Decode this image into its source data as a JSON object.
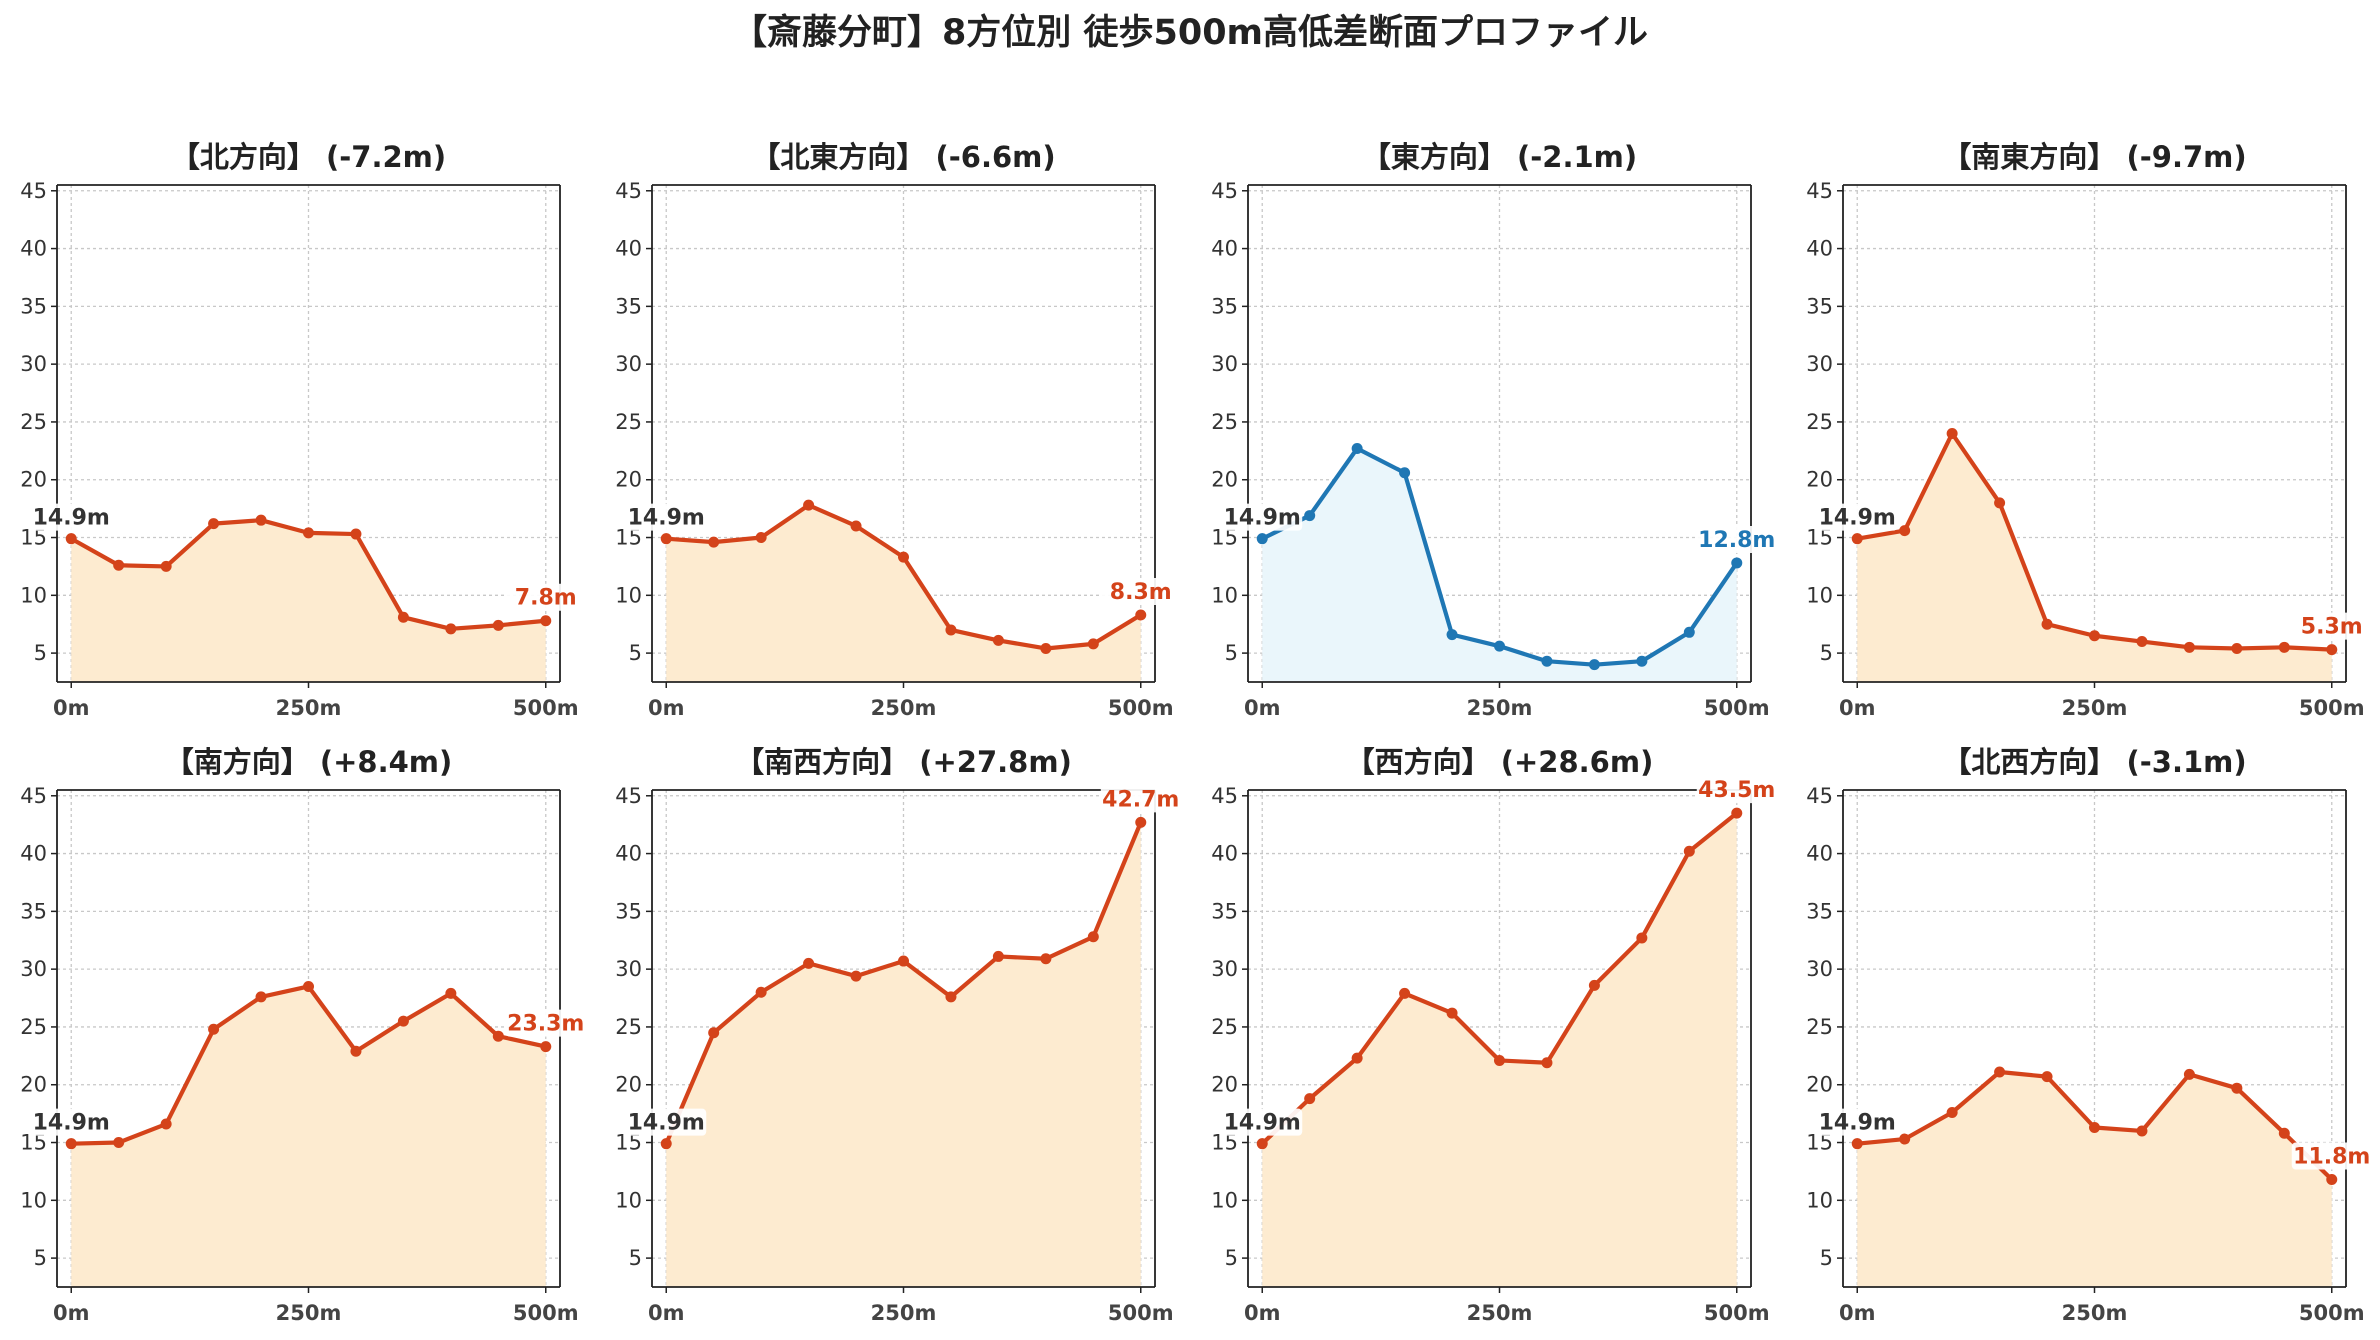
{
  "suptitle": "【斎藤分町】8方位別 徒歩500m高低差断面プロファイル",
  "colors": {
    "down_line": "#d4431a",
    "down_fill": "#fdebd0",
    "flat_line": "#1f77b4",
    "flat_fill": "#eaf6fb",
    "start_label": "#333333",
    "grid": "#c8c8c8"
  },
  "chart_data": [
    {
      "type": "line",
      "title": "【北方向】 (-7.2m)",
      "x": [
        0,
        50,
        100,
        150,
        200,
        250,
        300,
        350,
        400,
        450,
        500
      ],
      "y": [
        14.9,
        12.6,
        12.5,
        16.2,
        16.5,
        15.4,
        15.3,
        8.1,
        7.1,
        7.4,
        7.8
      ],
      "x_ticks": [
        "0m",
        "250m",
        "500m"
      ],
      "ylim": [
        2.5,
        45.5
      ],
      "y_ticks": [
        5,
        10,
        15,
        20,
        25,
        30,
        35,
        40,
        45
      ],
      "start_label": "14.9m",
      "end_label": "7.8m",
      "style": "down",
      "grid": true
    },
    {
      "type": "line",
      "title": "【北東方向】 (-6.6m)",
      "x": [
        0,
        50,
        100,
        150,
        200,
        250,
        300,
        350,
        400,
        450,
        500
      ],
      "y": [
        14.9,
        14.6,
        15.0,
        17.8,
        16.0,
        13.3,
        7.0,
        6.1,
        5.4,
        5.8,
        8.3
      ],
      "x_ticks": [
        "0m",
        "250m",
        "500m"
      ],
      "ylim": [
        2.5,
        45.5
      ],
      "y_ticks": [
        5,
        10,
        15,
        20,
        25,
        30,
        35,
        40,
        45
      ],
      "start_label": "14.9m",
      "end_label": "8.3m",
      "style": "down",
      "grid": true
    },
    {
      "type": "line",
      "title": "【東方向】 (-2.1m)",
      "x": [
        0,
        50,
        100,
        150,
        200,
        250,
        300,
        350,
        400,
        450,
        500
      ],
      "y": [
        14.9,
        16.9,
        22.7,
        20.6,
        6.6,
        5.6,
        4.3,
        4.0,
        4.3,
        6.8,
        12.8
      ],
      "x_ticks": [
        "0m",
        "250m",
        "500m"
      ],
      "ylim": [
        2.5,
        45.5
      ],
      "y_ticks": [
        5,
        10,
        15,
        20,
        25,
        30,
        35,
        40,
        45
      ],
      "start_label": "14.9m",
      "end_label": "12.8m",
      "style": "flat",
      "grid": true
    },
    {
      "type": "line",
      "title": "【南東方向】 (-9.7m)",
      "x": [
        0,
        50,
        100,
        150,
        200,
        250,
        300,
        350,
        400,
        450,
        500
      ],
      "y": [
        14.9,
        15.6,
        24.0,
        18.0,
        7.5,
        6.5,
        6.0,
        5.5,
        5.4,
        5.5,
        5.3
      ],
      "x_ticks": [
        "0m",
        "250m",
        "500m"
      ],
      "ylim": [
        2.5,
        45.5
      ],
      "y_ticks": [
        5,
        10,
        15,
        20,
        25,
        30,
        35,
        40,
        45
      ],
      "start_label": "14.9m",
      "end_label": "5.3m",
      "style": "down",
      "grid": true
    },
    {
      "type": "line",
      "title": "【南方向】 (+8.4m)",
      "x": [
        0,
        50,
        100,
        150,
        200,
        250,
        300,
        350,
        400,
        450,
        500
      ],
      "y": [
        14.9,
        15.0,
        16.6,
        24.8,
        27.6,
        28.5,
        22.9,
        25.5,
        27.9,
        24.2,
        23.3
      ],
      "x_ticks": [
        "0m",
        "250m",
        "500m"
      ],
      "ylim": [
        2.5,
        45.5
      ],
      "y_ticks": [
        5,
        10,
        15,
        20,
        25,
        30,
        35,
        40,
        45
      ],
      "start_label": "14.9m",
      "end_label": "23.3m",
      "style": "down",
      "grid": true
    },
    {
      "type": "line",
      "title": "【南西方向】 (+27.8m)",
      "x": [
        0,
        50,
        100,
        150,
        200,
        250,
        300,
        350,
        400,
        450,
        500
      ],
      "y": [
        14.9,
        24.5,
        28.0,
        30.5,
        29.4,
        30.7,
        27.6,
        31.1,
        30.9,
        32.8,
        42.7
      ],
      "x_ticks": [
        "0m",
        "250m",
        "500m"
      ],
      "ylim": [
        2.5,
        45.5
      ],
      "y_ticks": [
        5,
        10,
        15,
        20,
        25,
        30,
        35,
        40,
        45
      ],
      "start_label": "14.9m",
      "end_label": "42.7m",
      "style": "down",
      "grid": true
    },
    {
      "type": "line",
      "title": "【西方向】 (+28.6m)",
      "x": [
        0,
        50,
        100,
        150,
        200,
        250,
        300,
        350,
        400,
        450,
        500
      ],
      "y": [
        14.9,
        18.8,
        22.3,
        27.9,
        26.2,
        22.1,
        21.9,
        28.6,
        32.7,
        40.2,
        43.5
      ],
      "x_ticks": [
        "0m",
        "250m",
        "500m"
      ],
      "ylim": [
        2.5,
        45.5
      ],
      "y_ticks": [
        5,
        10,
        15,
        20,
        25,
        30,
        35,
        40,
        45
      ],
      "start_label": "14.9m",
      "end_label": "43.5m",
      "style": "down",
      "grid": true
    },
    {
      "type": "line",
      "title": "【北西方向】 (-3.1m)",
      "x": [
        0,
        50,
        100,
        150,
        200,
        250,
        300,
        350,
        400,
        450,
        500
      ],
      "y": [
        14.9,
        15.3,
        17.6,
        21.1,
        20.7,
        16.3,
        16.0,
        20.9,
        19.7,
        15.8,
        11.8
      ],
      "x_ticks": [
        "0m",
        "250m",
        "500m"
      ],
      "ylim": [
        2.5,
        45.5
      ],
      "y_ticks": [
        5,
        10,
        15,
        20,
        25,
        30,
        35,
        40,
        45
      ],
      "start_label": "14.9m",
      "end_label": "11.8m",
      "style": "down",
      "grid": true
    }
  ]
}
